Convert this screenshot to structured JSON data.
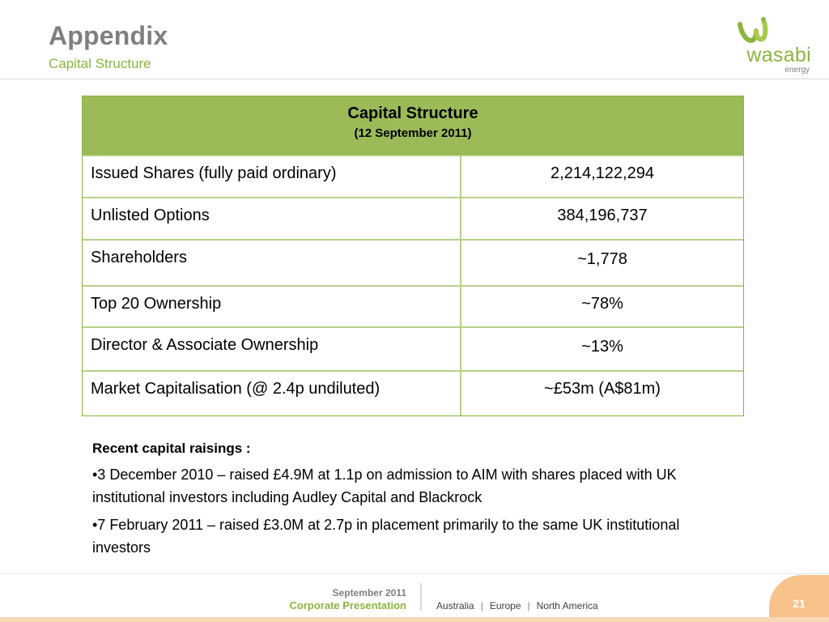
{
  "header": {
    "title": "Appendix",
    "subtitle": "Capital Structure"
  },
  "logo": {
    "word": "wasabi",
    "sub": "energy",
    "icon": "wasabi-leaf-icon"
  },
  "table": {
    "title": "Capital Structure",
    "subtitle": "(12 September 2011)",
    "rows": [
      {
        "label": "Issued Shares (fully paid ordinary)",
        "value": "2,214,122,294"
      },
      {
        "label": "Unlisted Options",
        "value": "384,196,737"
      },
      {
        "label": "Shareholders",
        "value": "~1,778"
      },
      {
        "label": "Top 20 Ownership",
        "value": "~78%"
      },
      {
        "label": "Director & Associate Ownership",
        "value": "~13%"
      },
      {
        "label": "Market Capitalisation (@ 2.4p undiluted)",
        "value": "~£53m (A$81m)"
      }
    ]
  },
  "notes": {
    "heading": "Recent capital raisings :",
    "bullets": [
      "•3 December 2010 – raised £4.9M at 1.1p on admission to AIM with shares placed with UK institutional investors including Audley Capital and Blackrock",
      "•7 February 2011 – raised £3.0M at 2.7p in placement primarily to the same UK institutional investors"
    ]
  },
  "footer": {
    "date": "September 2011",
    "presentation": "Corporate Presentation",
    "regions": [
      "Australia",
      "Europe",
      "North America"
    ],
    "separator": "|",
    "page": "21"
  },
  "colors": {
    "accent_green": "#8cb53f",
    "table_header": "#9bbb59",
    "page_tab": "#f7c38a",
    "title_gray": "#7f7f7f"
  }
}
